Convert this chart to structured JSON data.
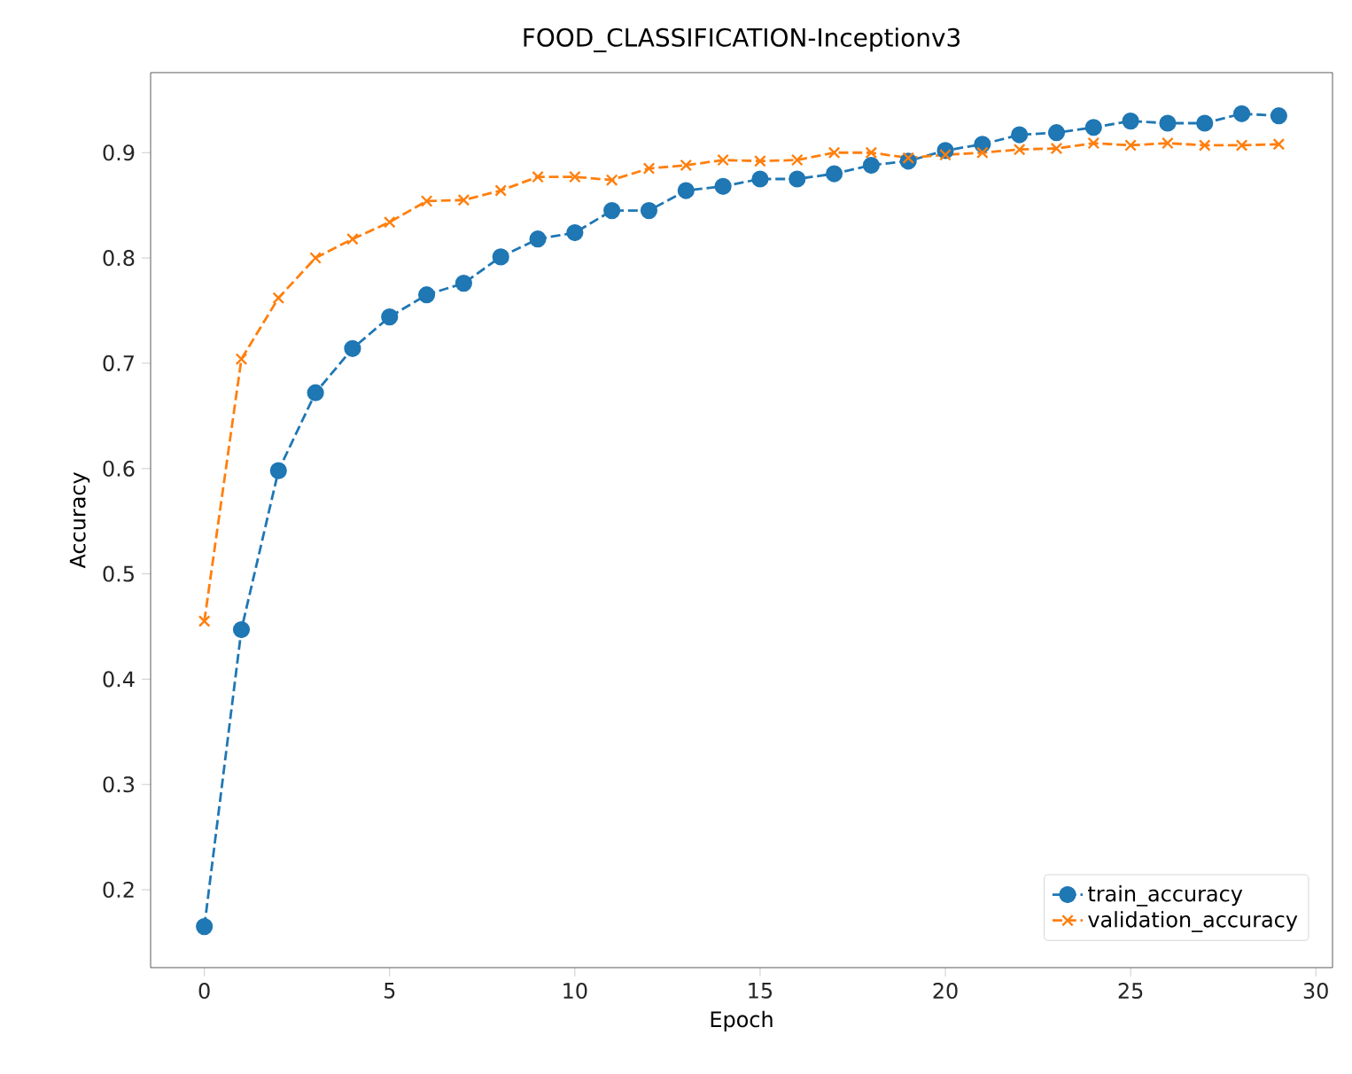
{
  "chart_data": {
    "type": "line",
    "title": "FOOD_CLASSIFICATION-Inceptionv3",
    "xlabel": "Epoch",
    "ylabel": "Accuracy",
    "x": [
      0,
      1,
      2,
      3,
      4,
      5,
      6,
      7,
      8,
      9,
      10,
      11,
      12,
      13,
      14,
      15,
      16,
      17,
      18,
      19,
      20,
      21,
      22,
      23,
      24,
      25,
      26,
      27,
      28,
      29
    ],
    "series": [
      {
        "name": "train_accuracy",
        "color": "#1f77b4",
        "marker": "circle",
        "values": [
          0.165,
          0.447,
          0.598,
          0.672,
          0.714,
          0.744,
          0.765,
          0.776,
          0.801,
          0.818,
          0.824,
          0.845,
          0.845,
          0.864,
          0.868,
          0.875,
          0.875,
          0.88,
          0.888,
          0.892,
          0.902,
          0.908,
          0.917,
          0.919,
          0.924,
          0.93,
          0.928,
          0.928,
          0.937,
          0.935
        ]
      },
      {
        "name": "validation_accuracy",
        "color": "#ff7f0e",
        "marker": "cross",
        "values": [
          0.455,
          0.704,
          0.762,
          0.8,
          0.818,
          0.834,
          0.854,
          0.855,
          0.864,
          0.877,
          0.877,
          0.874,
          0.885,
          0.888,
          0.893,
          0.892,
          0.893,
          0.9,
          0.9,
          0.895,
          0.898,
          0.9,
          0.903,
          0.904,
          0.909,
          0.907,
          0.909,
          0.907,
          0.907,
          0.908
        ]
      }
    ],
    "line_style": "dashed",
    "xlim": [
      -1.45,
      30.45
    ],
    "ylim": [
      0.126,
      0.976
    ],
    "xticks": [
      0,
      5,
      10,
      15,
      20,
      25,
      30
    ],
    "yticks": [
      0.2,
      0.3,
      0.4,
      0.5,
      0.6,
      0.7,
      0.8,
      0.9
    ],
    "legend": "bottom right"
  }
}
